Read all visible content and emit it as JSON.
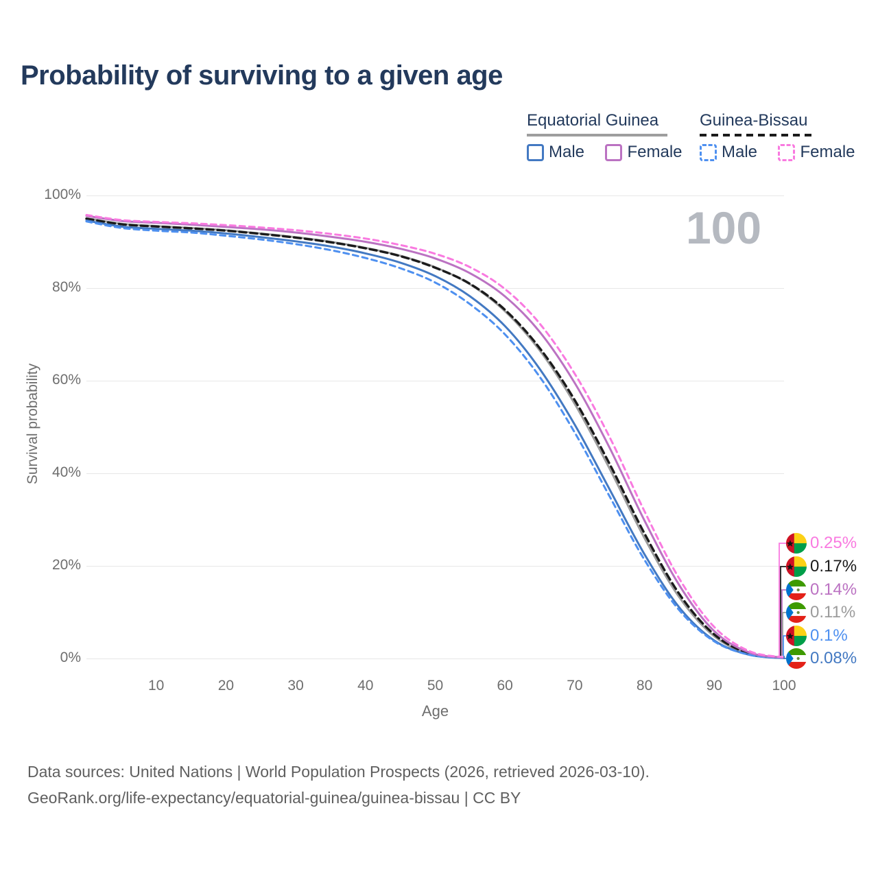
{
  "title": "Probability of surviving to a given age",
  "watermark_age": "100",
  "legend": {
    "groups": [
      {
        "name": "Equatorial Guinea",
        "line_style": "solid",
        "underline_color": "#9e9e9e",
        "items": [
          {
            "label": "Male",
            "color": "#4379c2"
          },
          {
            "label": "Female",
            "color": "#bb72c2"
          }
        ]
      },
      {
        "name": "Guinea-Bissau",
        "line_style": "dashed",
        "underline_color": "#1b1b1b",
        "items": [
          {
            "label": "Male",
            "color": "#4e90f0"
          },
          {
            "label": "Female",
            "color": "#f97ae0"
          }
        ]
      }
    ]
  },
  "axes": {
    "y_title": "Survival probability",
    "y_ticks": [
      "100%",
      "80%",
      "60%",
      "40%",
      "20%",
      "0%"
    ],
    "x_title": "Age",
    "x_ticks": [
      "10",
      "20",
      "30",
      "40",
      "50",
      "60",
      "70",
      "80",
      "90",
      "100"
    ]
  },
  "chart_data": {
    "type": "line",
    "title": "Probability of surviving to a given age",
    "xlabel": "Age",
    "ylabel": "Survival probability",
    "xlim": [
      0,
      100
    ],
    "ylim": [
      0,
      100
    ],
    "grid": "horizontal",
    "legend_position": "top-right",
    "x": [
      0,
      5,
      10,
      15,
      20,
      25,
      30,
      35,
      40,
      45,
      50,
      55,
      60,
      65,
      70,
      75,
      80,
      85,
      90,
      95,
      100
    ],
    "series": [
      {
        "name": "Equatorial Guinea Male",
        "country": "Equatorial Guinea",
        "sex": "Male",
        "line": "solid",
        "color": "#4379c2",
        "values_pct": [
          94.6,
          93.3,
          92.8,
          92.4,
          91.8,
          91.0,
          90.1,
          89.0,
          87.5,
          85.5,
          82.6,
          78.2,
          71.8,
          62.5,
          50.5,
          36.5,
          22.5,
          11.0,
          3.9,
          0.8,
          0.08
        ],
        "value_at_100": "0.08%"
      },
      {
        "name": "Guinea-Bissau Male",
        "country": "Guinea-Bissau",
        "sex": "Male",
        "line": "dashed",
        "color": "#4e90f0",
        "values_pct": [
          94.4,
          93.0,
          92.4,
          92.0,
          91.3,
          90.5,
          89.5,
          88.2,
          86.5,
          84.3,
          81.2,
          76.5,
          70.0,
          60.8,
          48.8,
          35.0,
          21.3,
          10.4,
          3.7,
          0.8,
          0.1
        ],
        "value_at_100": "0.1%"
      },
      {
        "name": "Equatorial Guinea Total",
        "country": "Equatorial Guinea",
        "sex": "Total",
        "line": "solid",
        "color": "#9c9c9c",
        "values_pct": [
          95.1,
          93.9,
          93.4,
          93.0,
          92.5,
          91.8,
          91.0,
          90.0,
          88.7,
          87.0,
          84.5,
          80.8,
          75.0,
          66.5,
          55.0,
          41.0,
          26.0,
          13.2,
          4.8,
          1.0,
          0.11
        ],
        "value_at_100": "0.11%"
      },
      {
        "name": "Guinea-Bissau Total",
        "country": "Guinea-Bissau",
        "sex": "Total",
        "line": "dashed",
        "color": "#1b1b1b",
        "values_pct": [
          95.0,
          93.8,
          93.3,
          92.9,
          92.4,
          91.7,
          90.9,
          89.9,
          88.6,
          86.9,
          84.4,
          80.9,
          75.3,
          67.0,
          55.8,
          42.0,
          27.0,
          13.9,
          5.2,
          1.1,
          0.17
        ],
        "value_at_100": "0.17%"
      },
      {
        "name": "Equatorial Guinea Female",
        "country": "Equatorial Guinea",
        "sex": "Female",
        "line": "solid",
        "color": "#bb72c2",
        "values_pct": [
          95.6,
          94.5,
          94.1,
          93.7,
          93.2,
          92.7,
          92.0,
          91.1,
          90.0,
          88.5,
          86.4,
          83.2,
          78.2,
          70.5,
          59.5,
          45.5,
          29.8,
          15.8,
          5.9,
          1.3,
          0.14
        ],
        "value_at_100": "0.14%"
      },
      {
        "name": "Guinea-Bissau Female",
        "country": "Guinea-Bissau",
        "sex": "Female",
        "line": "dashed",
        "color": "#f97ae0",
        "values_pct": [
          95.8,
          94.7,
          94.3,
          94.0,
          93.6,
          93.1,
          92.5,
          91.7,
          90.7,
          89.3,
          87.4,
          84.5,
          79.8,
          72.3,
          61.5,
          47.8,
          31.8,
          17.2,
          6.8,
          1.6,
          0.25
        ],
        "value_at_100": "0.25%"
      }
    ]
  },
  "right_labels": [
    {
      "value": "0.25%",
      "color": "#f97ae0",
      "flag": "guinea-bissau"
    },
    {
      "value": "0.17%",
      "color": "#1b1b1b",
      "flag": "guinea-bissau"
    },
    {
      "value": "0.14%",
      "color": "#bb72c2",
      "flag": "equatorial-guinea"
    },
    {
      "value": "0.11%",
      "color": "#9c9c9c",
      "flag": "equatorial-guinea"
    },
    {
      "value": "0.1%",
      "color": "#4e90f0",
      "flag": "guinea-bissau"
    },
    {
      "value": "0.08%",
      "color": "#4379c2",
      "flag": "equatorial-guinea"
    }
  ],
  "footer": {
    "line1": "Data sources: United Nations | World Population Prospects (2026, retrieved 2026-03-10).",
    "line2": "GeoRank.org/life-expectancy/equatorial-guinea/guinea-bissau | CC BY"
  }
}
